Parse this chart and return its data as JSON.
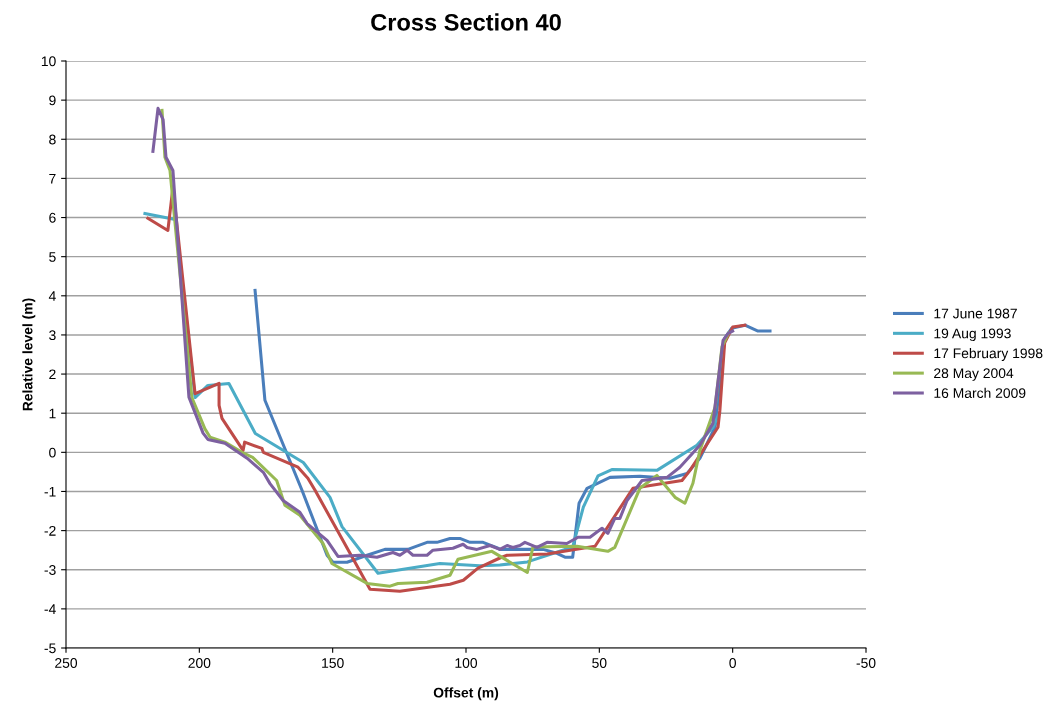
{
  "chart_data": {
    "type": "line",
    "title": "Cross Section 40",
    "xlabel": "Offset (m)",
    "ylabel": "Relative level (m)",
    "xlim": [
      250,
      -50
    ],
    "xticks": [
      250,
      200,
      150,
      100,
      50,
      0,
      -50
    ],
    "ylim": [
      -5,
      10
    ],
    "yticks": [
      -5,
      -4,
      -3,
      -2,
      -1,
      0,
      1,
      2,
      3,
      4,
      5,
      6,
      7,
      8,
      9,
      10
    ],
    "grid": "y",
    "legend": "right",
    "marker": "none",
    "line_style": "solid",
    "series": [
      {
        "name": "17 June 1987",
        "color": "#4a7ebb",
        "x": [
          179.1,
          175.4,
          161.5,
          152.1,
          149.9,
          144.6,
          137.1,
          130.4,
          121.8,
          114.6,
          110.9,
          106,
          102.3,
          98.5,
          93.6,
          88,
          87.3,
          71.1,
          65.9,
          62.9,
          60,
          57.6,
          54.6,
          46,
          34.8,
          23.5,
          17.1,
          12.3,
          6.6,
          3,
          0.4,
          -4.6,
          -9.5,
          -14
        ],
        "values": [
          4.14,
          1.33,
          -0.97,
          -2.63,
          -2.81,
          -2.81,
          -2.63,
          -2.48,
          -2.48,
          -2.3,
          -2.3,
          -2.2,
          -2.2,
          -2.3,
          -2.3,
          -2.45,
          -2.48,
          -2.48,
          -2.58,
          -2.68,
          -2.68,
          -1.3,
          -0.92,
          -0.64,
          -0.61,
          -0.66,
          -0.54,
          -0.15,
          0.64,
          2.91,
          3.17,
          3.25,
          3.1,
          3.1
        ]
      },
      {
        "name": "19 Aug 1993",
        "color": "#4bacc6",
        "x": [
          220.4,
          209,
          201.6,
          196.8,
          188.9,
          179,
          161,
          151,
          146.5,
          133,
          109.8,
          94.8,
          87.3,
          77,
          60,
          56,
          50.5,
          45.3,
          28.4,
          13.4,
          7.4,
          5
        ],
        "values": [
          6.1,
          5.95,
          1.4,
          1.71,
          1.76,
          0.48,
          -0.26,
          -1.15,
          -1.9,
          -3.09,
          -2.84,
          -2.9,
          -2.88,
          -2.8,
          -2.42,
          -1.4,
          -0.6,
          -0.44,
          -0.46,
          0.18,
          0.64,
          1.0
        ]
      },
      {
        "name": "17 February 1998",
        "color": "#be4b48",
        "x": [
          219.3,
          211.8,
          209.9,
          201.6,
          192.6,
          192.6,
          191.5,
          183.6,
          183,
          176.5,
          176,
          163,
          159.3,
          156.6,
          136,
          124.8,
          106,
          101,
          95.5,
          87.3,
          84.6,
          69.6,
          51.6,
          37.4,
          19,
          16,
          5.5,
          4.8,
          3,
          0,
          -4.6
        ],
        "values": [
          5.98,
          5.67,
          6.77,
          1.5,
          1.76,
          1.2,
          0.87,
          0.05,
          0.26,
          0.1,
          0,
          -0.38,
          -0.66,
          -0.97,
          -3.5,
          -3.55,
          -3.37,
          -3.27,
          -2.96,
          -2.7,
          -2.63,
          -2.6,
          -2.4,
          -0.92,
          -0.72,
          -0.46,
          0.64,
          1.07,
          2.8,
          3.2,
          3.25
        ]
      },
      {
        "name": "28 May 2004",
        "color": "#98b954",
        "x": [
          214,
          212.9,
          211,
          202.8,
          197.9,
          196,
          190.4,
          184,
          180,
          171,
          167.9,
          162.3,
          153.6,
          150.3,
          137.1,
          128.5,
          125.5,
          114.6,
          106,
          103,
          90.3,
          77,
          74.9,
          58.4,
          46.8,
          44.2,
          34.8,
          28.4,
          21.6,
          17.9,
          14.9,
          12.3,
          6.6,
          4,
          1.5
        ],
        "values": [
          8.74,
          7.54,
          7.2,
          1.4,
          0.6,
          0.39,
          0.26,
          0,
          -0.13,
          -0.72,
          -1.35,
          -1.61,
          -2.33,
          -2.84,
          -3.35,
          -3.42,
          -3.35,
          -3.32,
          -3.14,
          -2.73,
          -2.53,
          -3.07,
          -2.42,
          -2.4,
          -2.53,
          -2.43,
          -0.92,
          -0.59,
          -1.15,
          -1.3,
          -0.79,
          0.05,
          1.15,
          2.7,
          3.05
        ]
      },
      {
        "name": "16 March 2009",
        "color": "#7d60a0",
        "x": [
          217.4,
          215.5,
          213.6,
          212.5,
          209.9,
          203.9,
          198.6,
          196.8,
          190.4,
          182.1,
          176,
          173.5,
          168.6,
          162.3,
          159.6,
          152.1,
          148,
          139.8,
          133.4,
          127.4,
          124.8,
          122.1,
          119.9,
          114.6,
          112.4,
          104.9,
          101.1,
          99.6,
          95.9,
          91,
          87.3,
          84.6,
          82.4,
          79.8,
          77.9,
          73.4,
          69.6,
          62.2,
          58,
          53.5,
          49,
          46.8,
          44.2,
          42.3,
          39.6,
          34,
          24.6,
          19.8,
          12.3,
          7.4,
          3.6,
          1.7,
          0
        ],
        "values": [
          7.69,
          8.79,
          8.5,
          7.54,
          7.2,
          1.41,
          0.49,
          0.33,
          0.23,
          -0.15,
          -0.51,
          -0.8,
          -1.23,
          -1.53,
          -1.82,
          -2.25,
          -2.66,
          -2.63,
          -2.68,
          -2.56,
          -2.63,
          -2.5,
          -2.63,
          -2.63,
          -2.5,
          -2.45,
          -2.35,
          -2.43,
          -2.48,
          -2.38,
          -2.48,
          -2.38,
          -2.43,
          -2.38,
          -2.3,
          -2.43,
          -2.3,
          -2.33,
          -2.17,
          -2.17,
          -1.94,
          -2.07,
          -1.69,
          -1.69,
          -1.23,
          -0.72,
          -0.64,
          -0.38,
          0.18,
          0.74,
          2.86,
          3.04,
          3.1
        ]
      }
    ]
  }
}
